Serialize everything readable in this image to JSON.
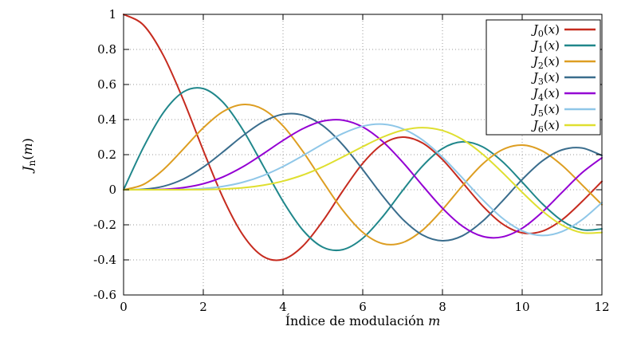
{
  "figure": {
    "background": "#ffffff",
    "axis_color": "#000000",
    "grid_color": "#9a9a9a"
  },
  "chart_data": {
    "type": "line",
    "title": "",
    "xlabel": {
      "text": "Índice de modulación",
      "var": "m"
    },
    "ylabel": {
      "base": "J",
      "sub": "n",
      "arg": "m"
    },
    "xlim": [
      0,
      12
    ],
    "ylim": [
      -0.6,
      1
    ],
    "grid": true,
    "legend_position": "top-right",
    "xticks": {
      "values": [
        0,
        2,
        4,
        6,
        8,
        10,
        12
      ],
      "labels": [
        "0",
        "2",
        "4",
        "6",
        "8",
        "10",
        "12"
      ]
    },
    "yticks": {
      "values": [
        -0.6,
        -0.4,
        -0.2,
        0,
        0.2,
        0.4,
        0.6,
        0.8,
        1
      ],
      "labels": [
        "-0.6",
        "-0.4",
        "-0.2",
        "0",
        "0.2",
        "0.4",
        "0.6",
        "0.8",
        "1"
      ]
    },
    "x_start": 0,
    "x_step": 0.5,
    "series": [
      {
        "label": "J0(x)",
        "label_base": "J",
        "label_sub": "0",
        "label_arg": "x",
        "color": "#c62b1f",
        "values": [
          1.0,
          0.9385,
          0.7652,
          0.5118,
          0.2239,
          -0.0484,
          -0.2601,
          -0.3801,
          -0.3971,
          -0.3205,
          -0.1776,
          -0.0068,
          0.1506,
          0.2601,
          0.3001,
          0.2663,
          0.1717,
          0.0419,
          -0.0903,
          -0.1939,
          -0.2459,
          -0.2366,
          -0.1712,
          -0.0677,
          0.0477
        ]
      },
      {
        "label": "J1(x)",
        "label_base": "J",
        "label_sub": "1",
        "label_arg": "x",
        "color": "#20878b",
        "values": [
          0.0,
          0.2423,
          0.4401,
          0.5579,
          0.5767,
          0.4971,
          0.3391,
          0.1374,
          -0.066,
          -0.2311,
          -0.3276,
          -0.3414,
          -0.2767,
          -0.1538,
          -0.0047,
          0.1352,
          0.2346,
          0.2731,
          0.2453,
          0.1613,
          0.0435,
          -0.0789,
          -0.1768,
          -0.2284,
          -0.2234
        ]
      },
      {
        "label": "J2(x)",
        "label_base": "J",
        "label_sub": "2",
        "label_arg": "x",
        "color": "#dd9e22",
        "values": [
          0.0,
          0.0306,
          0.1149,
          0.2321,
          0.3528,
          0.4461,
          0.4861,
          0.4586,
          0.3641,
          0.2178,
          0.0466,
          -0.1173,
          -0.2429,
          -0.3074,
          -0.3014,
          -0.2303,
          -0.113,
          0.0223,
          0.1448,
          0.2279,
          0.2546,
          0.2216,
          0.139,
          0.028,
          -0.0849
        ]
      },
      {
        "label": "J3(x)",
        "label_base": "J",
        "label_sub": "3",
        "label_arg": "x",
        "color": "#3a6d8d",
        "values": [
          0.0,
          0.0026,
          0.0196,
          0.061,
          0.1289,
          0.2166,
          0.3091,
          0.3868,
          0.4302,
          0.4247,
          0.3648,
          0.2561,
          0.1148,
          -0.0353,
          -0.1676,
          -0.2581,
          -0.2911,
          -0.2626,
          -0.1809,
          -0.0653,
          0.0584,
          0.1633,
          0.2273,
          0.2381,
          0.1951
        ]
      },
      {
        "label": "J4(x)",
        "label_base": "J",
        "label_sub": "4",
        "label_arg": "x",
        "color": "#9400d3",
        "values": [
          0.0,
          0.0002,
          0.0025,
          0.0118,
          0.034,
          0.0738,
          0.132,
          0.2044,
          0.2811,
          0.3484,
          0.3912,
          0.3967,
          0.3576,
          0.2748,
          0.1578,
          0.0238,
          -0.1054,
          -0.2077,
          -0.2655,
          -0.2691,
          -0.2196,
          -0.1283,
          -0.015,
          0.0962,
          0.1825
        ]
      },
      {
        "label": "J5(x)",
        "label_base": "J",
        "label_sub": "5",
        "label_arg": "x",
        "color": "#8fc7e8",
        "values": [
          0.0,
          0.0,
          0.0002,
          0.0018,
          0.007,
          0.0195,
          0.043,
          0.0804,
          0.1321,
          0.1947,
          0.2611,
          0.3209,
          0.3621,
          0.3736,
          0.3479,
          0.2835,
          0.1858,
          0.0671,
          -0.055,
          -0.1613,
          -0.2341,
          -0.2611,
          -0.2383,
          -0.1712,
          -0.0734
        ]
      },
      {
        "label": "J6(x)",
        "label_base": "J",
        "label_sub": "6",
        "label_arg": "x",
        "color": "#dfdf30",
        "values": [
          0.0,
          0.0,
          0.0,
          0.0002,
          0.0012,
          0.0042,
          0.0114,
          0.0254,
          0.0491,
          0.0843,
          0.131,
          0.1873,
          0.2458,
          0.2999,
          0.3392,
          0.3541,
          0.3376,
          0.2867,
          0.2043,
          0.0993,
          -0.0145,
          -0.1204,
          -0.2016,
          -0.2451,
          -0.2437
        ]
      }
    ]
  }
}
